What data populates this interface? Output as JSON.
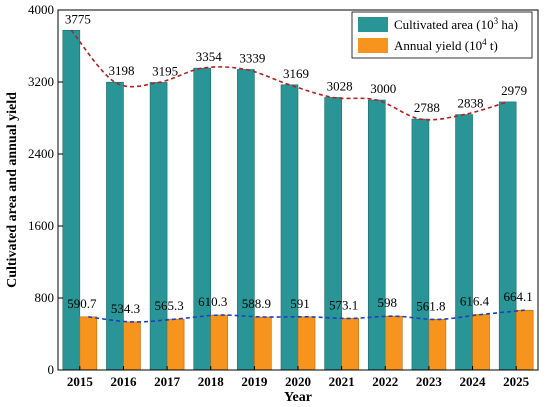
{
  "chart_data": {
    "type": "bar",
    "categories": [
      "2015",
      "2016",
      "2017",
      "2018",
      "2019",
      "2020",
      "2021",
      "2022",
      "2023",
      "2024",
      "2025"
    ],
    "series": [
      {
        "name": "Cultivated area (10³ ha)",
        "name_main": "Cultivated area (10",
        "name_sup": "3",
        "name_tail": " ha)",
        "values": [
          3775,
          3198,
          3195,
          3354,
          3339,
          3169,
          3028,
          3000,
          2788,
          2838,
          2979
        ],
        "labels": [
          "3775",
          "3198",
          "3195",
          "3354",
          "3339",
          "3169",
          "3028",
          "3000",
          "2788",
          "2838",
          "2979"
        ],
        "color": "#2a9596",
        "trend_color": "#b22222"
      },
      {
        "name": "Annual yield (10⁴ t)",
        "name_main": "Annual yield (10",
        "name_sup": "4",
        "name_tail": " t)",
        "values": [
          590.7,
          534.3,
          565.3,
          610.3,
          588.9,
          591,
          573.1,
          598,
          561.8,
          616.4,
          664.1
        ],
        "labels": [
          "590.7",
          "534.3",
          "565.3",
          "610.3",
          "588.9",
          "591",
          "573.1",
          "598",
          "561.8",
          "616.4",
          "664.1"
        ],
        "color": "#f7941d",
        "trend_color": "#1f3fbf"
      }
    ],
    "xlabel": "Year",
    "ylabel": "Cultivated area and annual yield",
    "ylim": [
      0,
      4000
    ],
    "yticks": [
      "0",
      "800",
      "1600",
      "2400",
      "3200",
      "4000"
    ],
    "ytick_values": [
      0,
      800,
      1600,
      2400,
      3200,
      4000
    ],
    "legend_position": "top-right",
    "grid": false
  }
}
